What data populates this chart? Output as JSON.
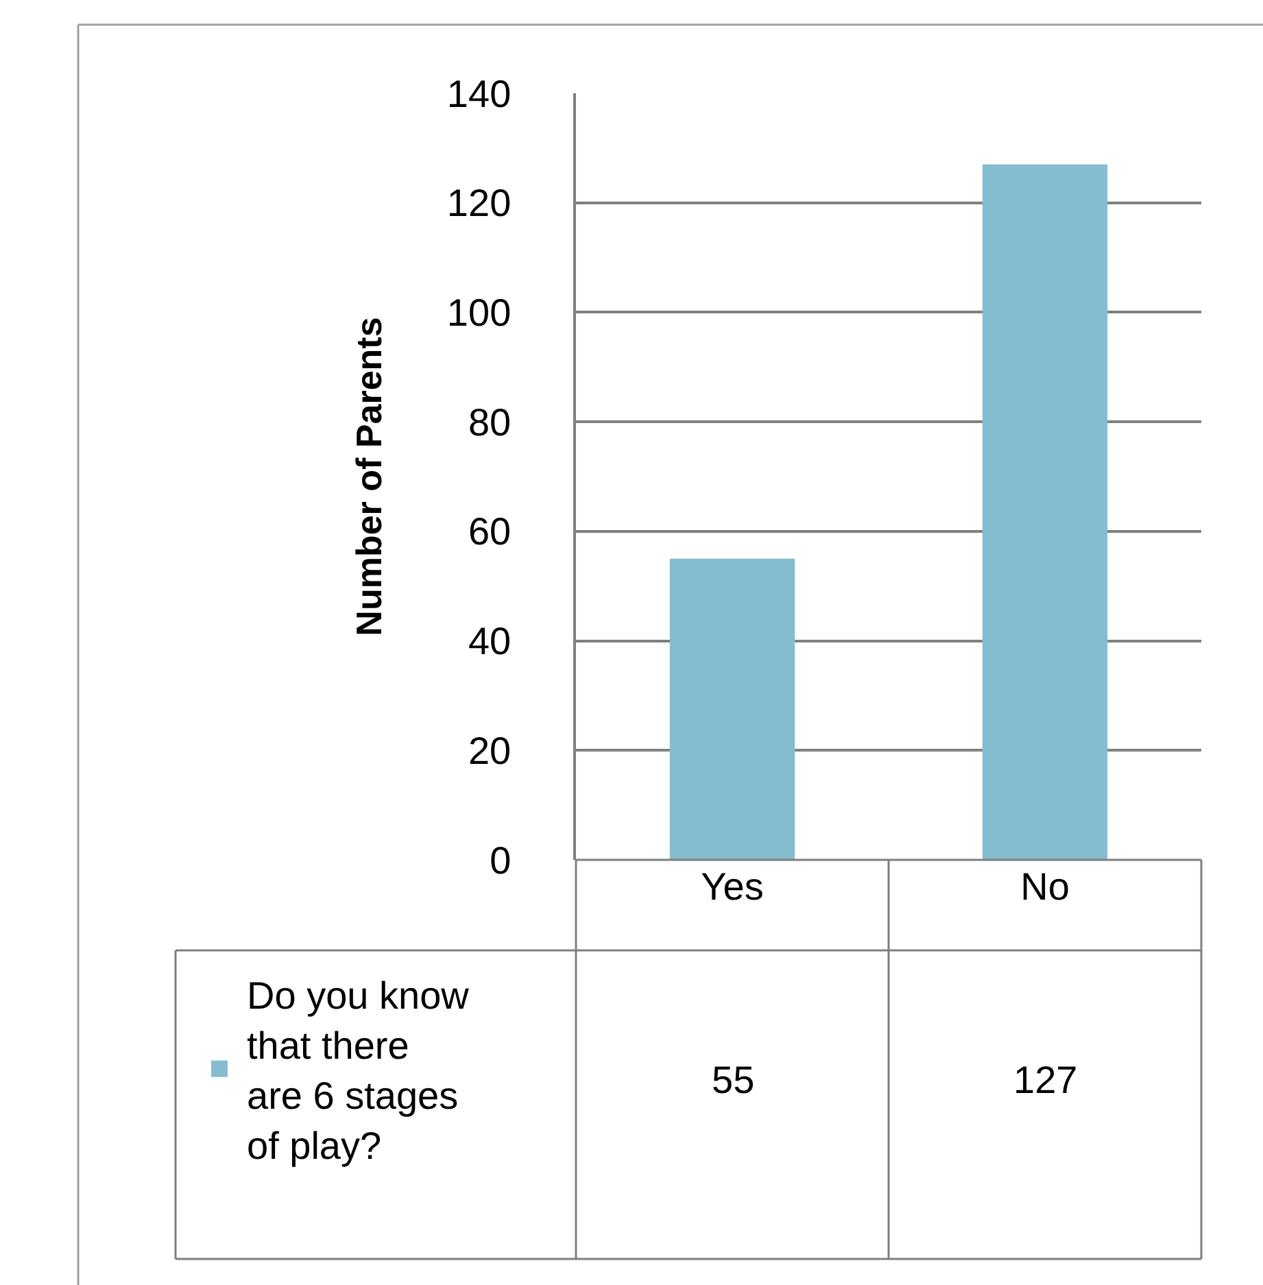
{
  "chart_data": {
    "type": "bar",
    "ylabel": "Number of Parents",
    "categories": [
      "Yes",
      "No"
    ],
    "series": [
      {
        "name": "Do you know that there are 6 stages of play?",
        "color": "#84bdd0",
        "values": [
          55,
          127
        ]
      }
    ],
    "ylim": [
      0,
      140
    ],
    "yticks": [
      0,
      20,
      40,
      60,
      80,
      100,
      120,
      140
    ],
    "grid": "y",
    "legend": "bottom left",
    "data_labels": true
  }
}
